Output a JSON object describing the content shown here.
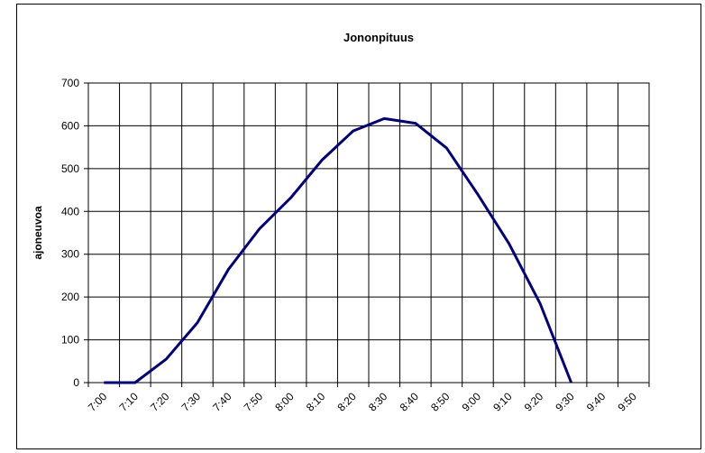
{
  "chart_data": {
    "type": "line",
    "title": "Jononpituus",
    "y_label": "ajoneuvoa",
    "categories": [
      "7:00",
      "7:10",
      "7:20",
      "7:30",
      "7:40",
      "7:50",
      "8:00",
      "8:10",
      "8:20",
      "8:30",
      "8:40",
      "8:50",
      "9:00",
      "9:10",
      "9:20",
      "9:30",
      "9:40",
      "9:50"
    ],
    "series": [
      {
        "name": "Jononpituus",
        "color": "#000080",
        "values": [
          0,
          0,
          55,
          140,
          265,
          360,
          432,
          520,
          588,
          617,
          606,
          548,
          440,
          325,
          185,
          0,
          null,
          null
        ]
      }
    ],
    "ylim": [
      0,
      700
    ],
    "yticks": [
      0,
      100,
      200,
      300,
      400,
      500,
      600,
      700
    ],
    "grid": true
  }
}
